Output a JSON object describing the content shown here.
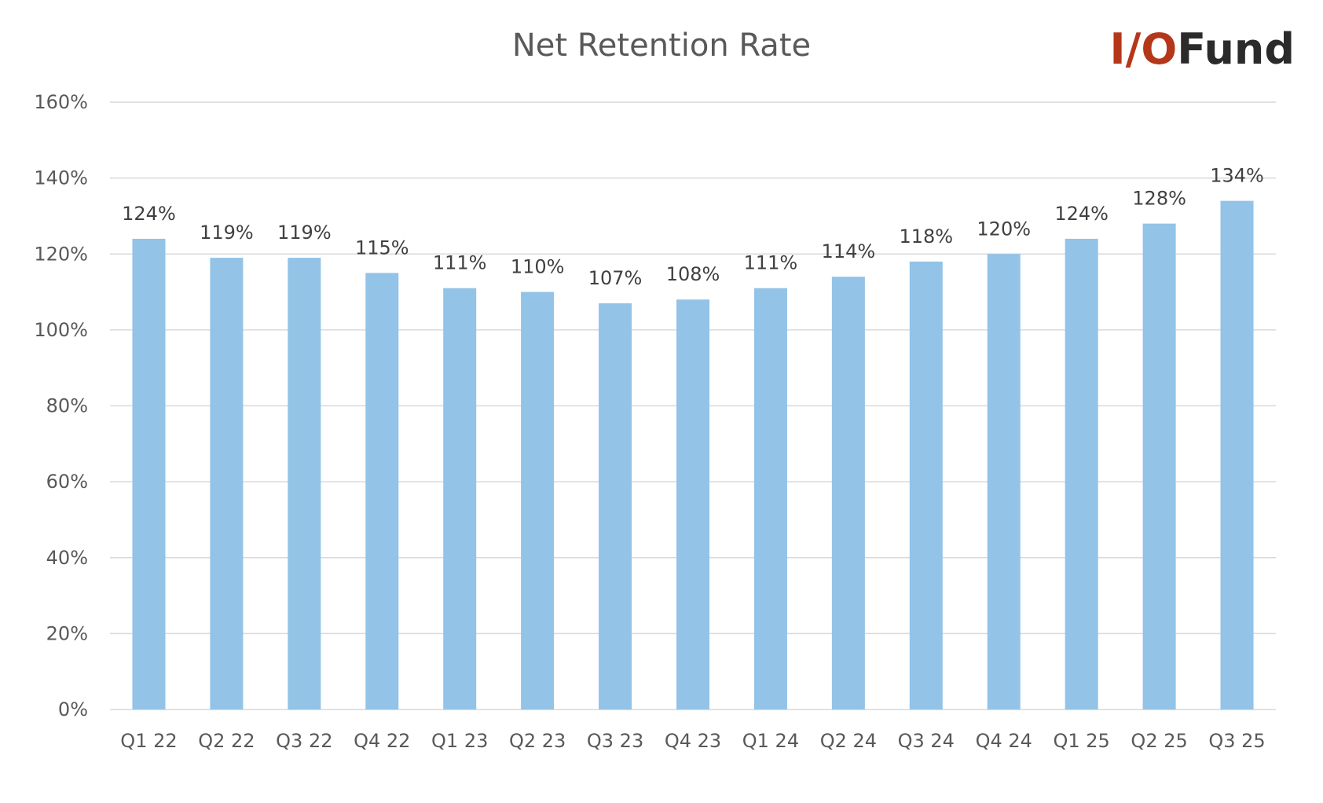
{
  "logo": {
    "part1": "I/O",
    "part2": "Fund",
    "color1": "#b5371a",
    "color2": "#2b2b2b"
  },
  "chart_data": {
    "type": "bar",
    "title": "Net Retention Rate",
    "xlabel": "",
    "ylabel": "",
    "categories": [
      "Q1 22",
      "Q2 22",
      "Q3 22",
      "Q4 22",
      "Q1 23",
      "Q2 23",
      "Q3 23",
      "Q4 23",
      "Q1 24",
      "Q2 24",
      "Q3 24",
      "Q4 24",
      "Q1 25",
      "Q2 25",
      "Q3 25"
    ],
    "values": [
      124,
      119,
      119,
      115,
      111,
      110,
      107,
      108,
      111,
      114,
      118,
      120,
      124,
      128,
      134
    ],
    "data_labels": [
      "124%",
      "119%",
      "119%",
      "115%",
      "111%",
      "110%",
      "107%",
      "108%",
      "111%",
      "114%",
      "118%",
      "120%",
      "124%",
      "128%",
      "134%"
    ],
    "ylim": [
      0,
      160
    ],
    "yticks": [
      0,
      20,
      40,
      60,
      80,
      100,
      120,
      140,
      160
    ],
    "ytick_labels": [
      "0%",
      "20%",
      "40%",
      "60%",
      "80%",
      "100%",
      "120%",
      "140%",
      "160%"
    ],
    "grid": true,
    "legend": "none",
    "colors": {
      "bar": "#93c3e7",
      "grid": "#d9d9d9",
      "axis": "#d9d9d9"
    }
  }
}
